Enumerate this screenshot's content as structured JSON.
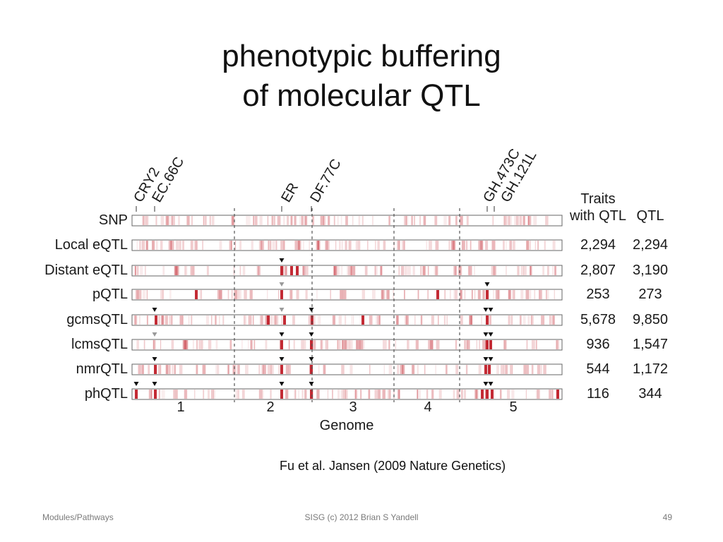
{
  "slide": {
    "title_line1": "phenotypic buffering",
    "title_line2": "of molecular QTL",
    "citation": "Fu et al. Jansen (2009 Nature Genetics)",
    "footer_left": "Modules/Pathways",
    "footer_center": "SISG (c) 2012 Brian S Yandell",
    "footer_right": "49"
  },
  "figure": {
    "marker_labels": [
      "CRY2",
      "EC.66C",
      "ER",
      "DF.77C",
      "GH.473C",
      "GH.121L"
    ],
    "column_header_traits_line1": "Traits",
    "column_header_traits_line2": "with QTL",
    "column_header_qtl": "QTL",
    "xlabel": "Genome",
    "chromosomes": [
      "1",
      "2",
      "3",
      "4",
      "5"
    ],
    "rows": [
      {
        "label": "SNP",
        "traits": "",
        "qtl": ""
      },
      {
        "label": "Local eQTL",
        "traits": "2,294",
        "qtl": "2,294"
      },
      {
        "label": "Distant eQTL",
        "traits": "2,807",
        "qtl": "3,190"
      },
      {
        "label": "pQTL",
        "traits": "253",
        "qtl": "273"
      },
      {
        "label": "gcmsQTL",
        "traits": "5,678",
        "qtl": "9,850"
      },
      {
        "label": "lcmsQTL",
        "traits": "936",
        "qtl": "1,547"
      },
      {
        "label": "nmrQTL",
        "traits": "544",
        "qtl": "1,172"
      },
      {
        "label": "phQTL",
        "traits": "116",
        "qtl": "344"
      }
    ],
    "colors": {
      "heat": "#c0202a",
      "frame": "#666666",
      "text": "#1a1a1a",
      "arrow_gray": "#9a9a9a"
    }
  }
}
